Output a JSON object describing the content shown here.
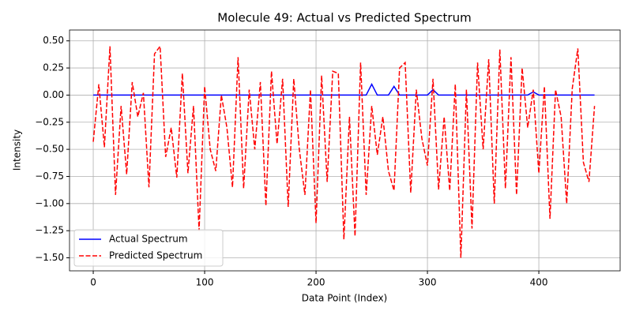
{
  "chart_data": {
    "type": "line",
    "title": "Molecule 49: Actual vs Predicted Spectrum",
    "xlabel": "Data Point (Index)",
    "ylabel": "Intensity",
    "x": [
      0,
      5,
      10,
      15,
      20,
      25,
      30,
      35,
      40,
      45,
      50,
      55,
      60,
      65,
      70,
      75,
      80,
      85,
      90,
      95,
      100,
      105,
      110,
      115,
      120,
      125,
      130,
      135,
      140,
      145,
      150,
      155,
      160,
      165,
      170,
      175,
      180,
      185,
      190,
      195,
      200,
      205,
      210,
      215,
      220,
      225,
      230,
      235,
      240,
      245,
      250,
      255,
      260,
      265,
      270,
      275,
      280,
      285,
      290,
      295,
      300,
      305,
      310,
      315,
      320,
      325,
      330,
      335,
      340,
      345,
      350,
      355,
      360,
      365,
      370,
      375,
      380,
      385,
      390,
      395,
      400,
      405,
      410,
      415,
      420,
      425,
      430,
      435,
      440,
      445,
      450
    ],
    "series": [
      {
        "name": "Actual Spectrum",
        "color": "#0000ff",
        "dash": "solid",
        "values": [
          0,
          0,
          0,
          0,
          0,
          0,
          0,
          0,
          0,
          0,
          0,
          0,
          0,
          0,
          0,
          0,
          0,
          0,
          0,
          0,
          0,
          0,
          0,
          0,
          0,
          0,
          0,
          0,
          0,
          0,
          0,
          0,
          0,
          0,
          0,
          0,
          0,
          0,
          0,
          0,
          0,
          0,
          0,
          0,
          0,
          0,
          0,
          0,
          0,
          0,
          0.1,
          0,
          0,
          0,
          0.08,
          0,
          0,
          0,
          0,
          0,
          0,
          0.05,
          0,
          0,
          0,
          0,
          0,
          0,
          0,
          0,
          0,
          0,
          0,
          0,
          0,
          0,
          0,
          0,
          0,
          0.03,
          0,
          0,
          0,
          0,
          0,
          0,
          0,
          0,
          0,
          0,
          0
        ]
      },
      {
        "name": "Predicted Spectrum",
        "color": "#ff0000",
        "dash": "dashed",
        "values": [
          -0.43,
          0.1,
          -0.48,
          0.45,
          -0.92,
          -0.1,
          -0.73,
          0.12,
          -0.2,
          0.02,
          -0.85,
          0.38,
          0.45,
          -0.57,
          -0.3,
          -0.76,
          0.2,
          -0.72,
          -0.1,
          -1.25,
          0.08,
          -0.5,
          -0.7,
          0.0,
          -0.3,
          -0.85,
          0.35,
          -0.86,
          0.05,
          -0.5,
          0.12,
          -1.02,
          0.22,
          -0.45,
          0.15,
          -1.03,
          0.15,
          -0.5,
          -0.92,
          0.05,
          -1.18,
          0.18,
          -0.8,
          0.22,
          0.2,
          -1.33,
          -0.2,
          -1.3,
          0.3,
          -0.92,
          -0.1,
          -0.55,
          -0.2,
          -0.7,
          -0.88,
          0.25,
          0.3,
          -0.9,
          0.05,
          -0.4,
          -0.65,
          0.15,
          -0.87,
          -0.2,
          -0.88,
          0.1,
          -1.5,
          0.05,
          -1.23,
          0.3,
          -0.5,
          0.33,
          -1.0,
          0.42,
          -0.86,
          0.35,
          -0.92,
          0.25,
          -0.3,
          0.05,
          -0.72,
          0.08,
          -1.14,
          0.05,
          -0.2,
          -1.0,
          0.06,
          0.43,
          -0.62,
          -0.8,
          -0.1
        ]
      }
    ],
    "xlim": [
      -21.3,
      473
    ],
    "ylim": [
      -1.62,
      0.6
    ],
    "xticks": [
      0,
      100,
      200,
      300,
      400
    ],
    "yticks": [
      {
        "value": 0.5,
        "label": "0.50"
      },
      {
        "value": 0.25,
        "label": "0.25"
      },
      {
        "value": 0,
        "label": "0.00"
      },
      {
        "value": -0.25,
        "label": "−0.25"
      },
      {
        "value": -0.5,
        "label": "−0.50"
      },
      {
        "value": -0.75,
        "label": "−0.75"
      },
      {
        "value": -1,
        "label": "−1.00"
      },
      {
        "value": -1.25,
        "label": "−1.25"
      },
      {
        "value": -1.5,
        "label": "−1.50"
      }
    ],
    "grid": true,
    "legend": "lower left"
  }
}
